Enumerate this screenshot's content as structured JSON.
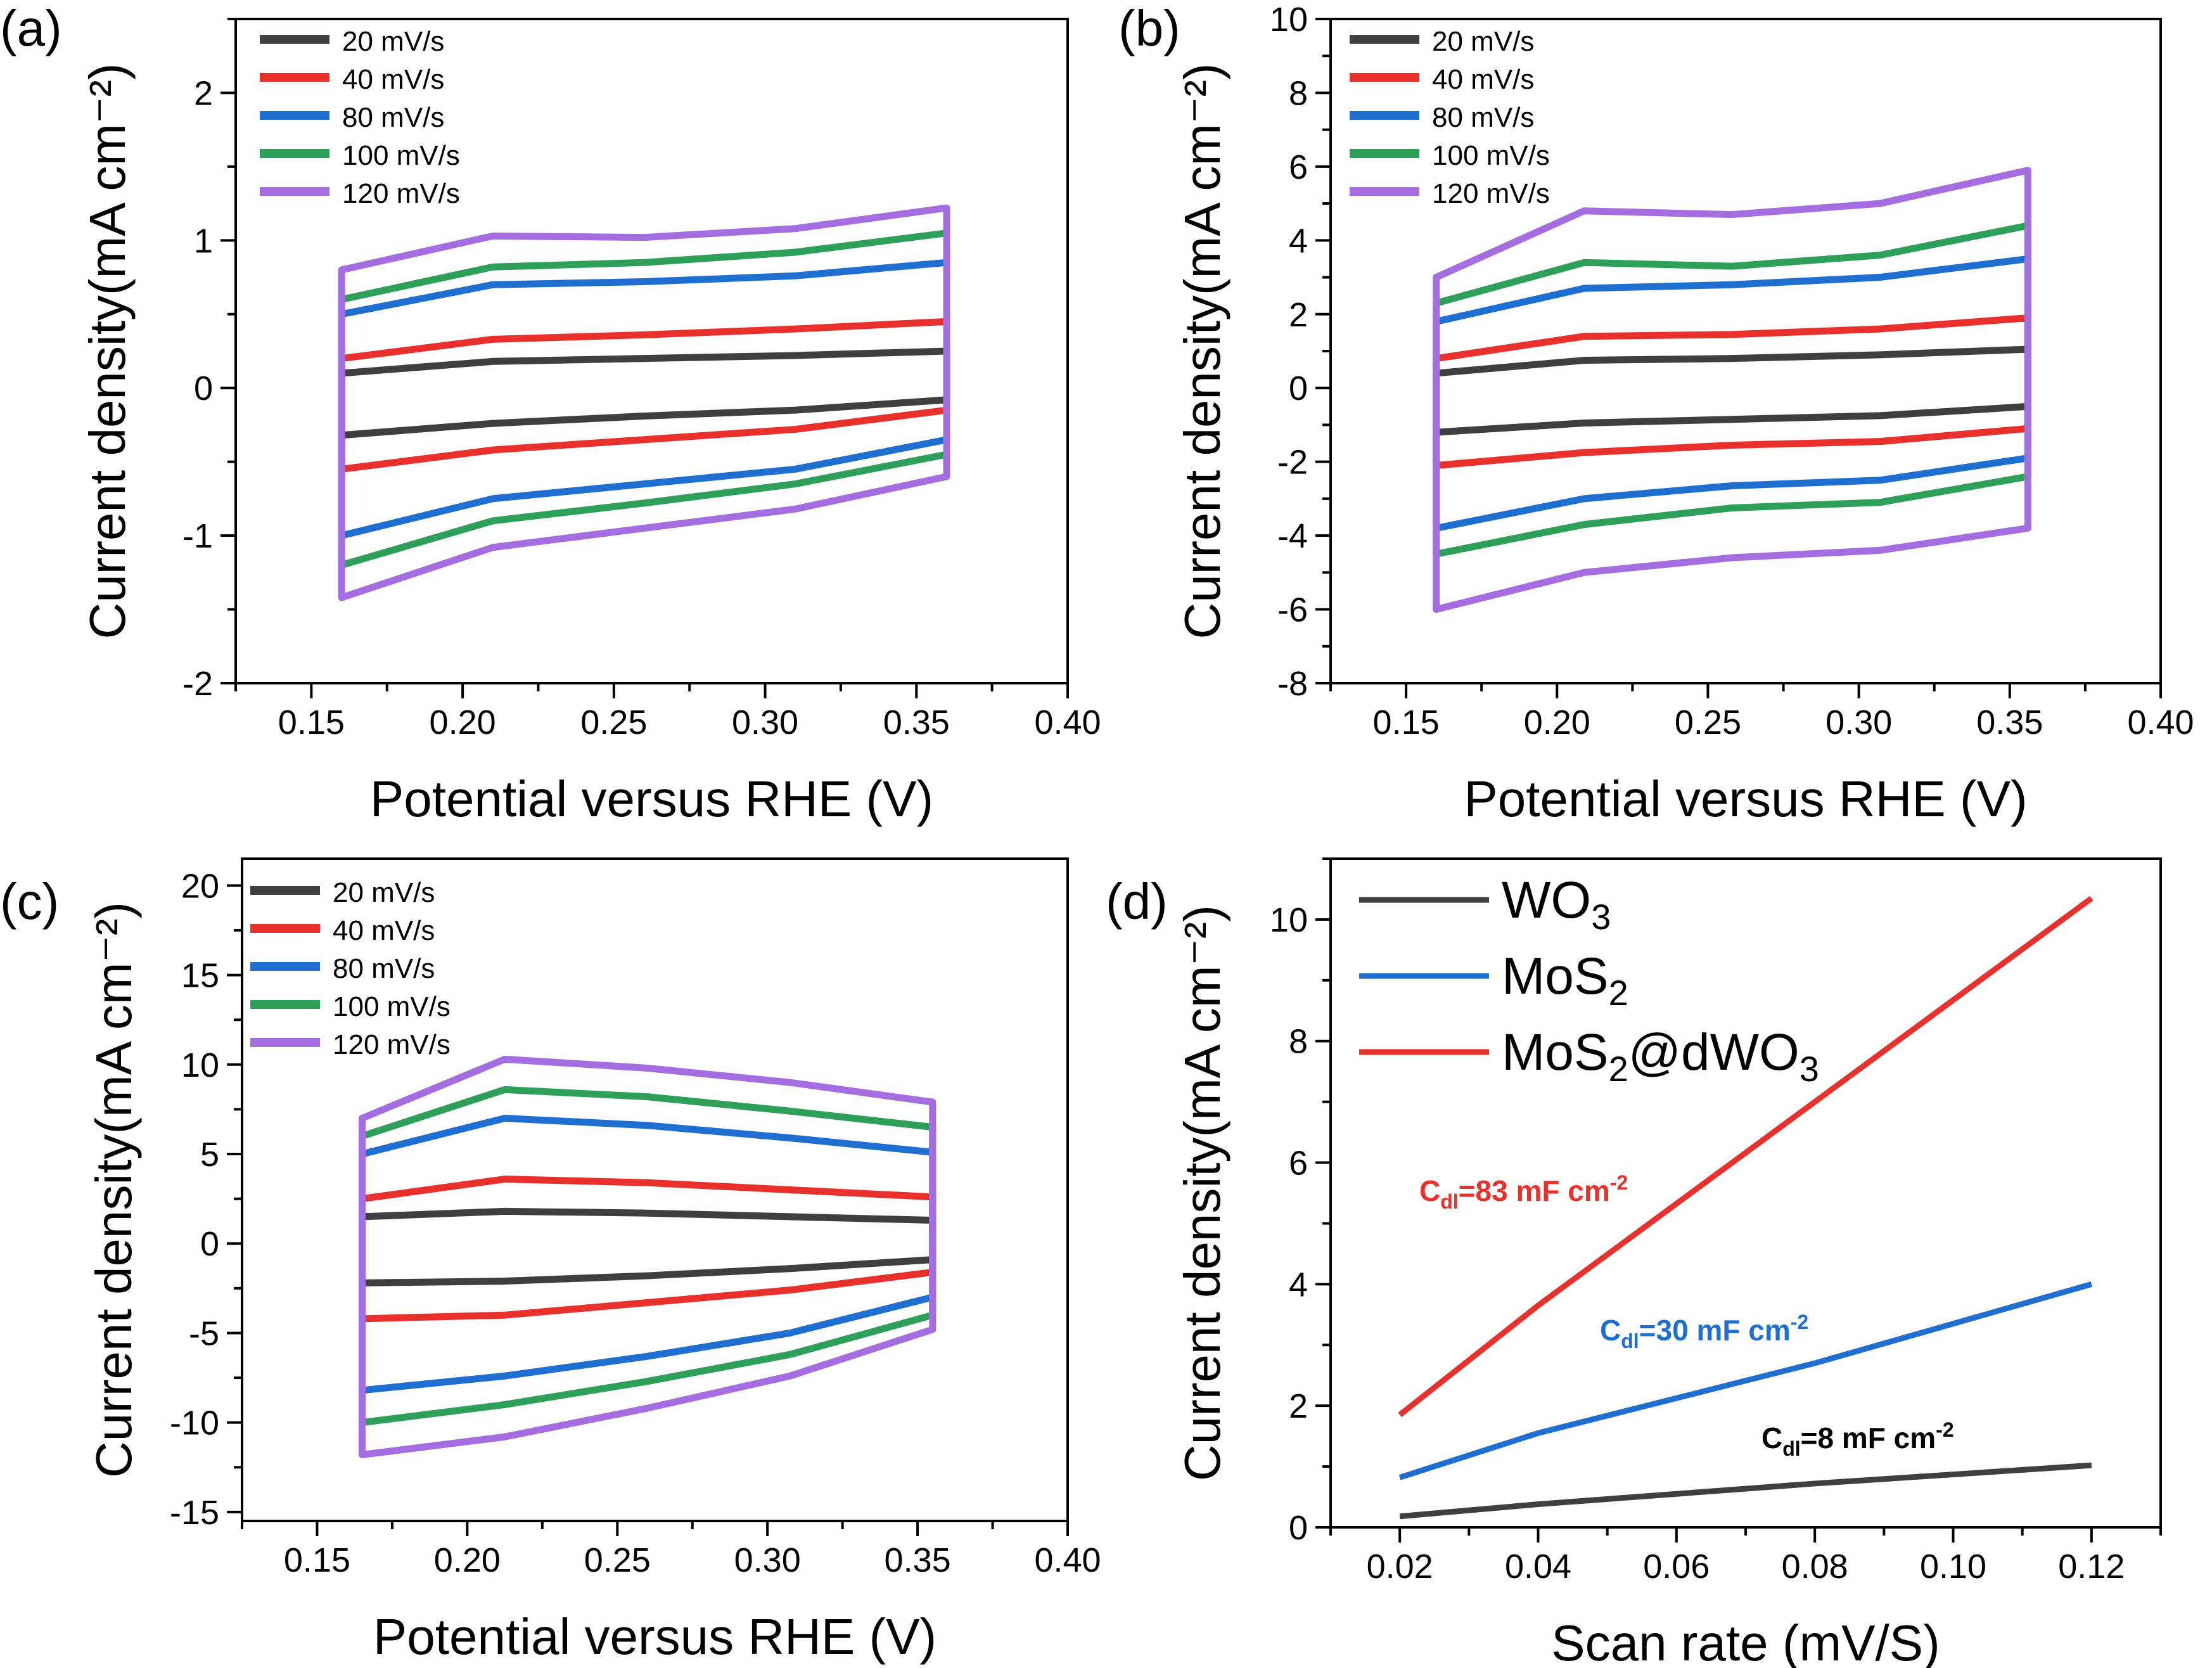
{
  "chart_data": [
    {
      "panel_label": "(a)",
      "type": "line",
      "xlabel": "Potential versus RHE (V)",
      "ylabel": "Current density(mA cm⁻²)",
      "xlim": [
        0.125,
        0.4
      ],
      "ylim": [
        -2.0,
        2.5
      ],
      "xticks": [
        "0.15",
        "0.20",
        "0.25",
        "0.30",
        "0.35",
        "0.40"
      ],
      "yticks": [
        "-2",
        "-1",
        "0",
        "1",
        "2"
      ],
      "xtick_values": [
        0.15,
        0.2,
        0.25,
        0.3,
        0.35,
        0.4
      ],
      "ytick_values": [
        -2,
        -1,
        0,
        1,
        2
      ],
      "x_range": [
        0.16,
        0.36
      ],
      "series": [
        {
          "name": "20 mV/s",
          "color": "#3f3f3f",
          "upper": [
            0.1,
            0.18,
            0.2,
            0.22,
            0.25
          ],
          "lower": [
            -0.32,
            -0.24,
            -0.19,
            -0.15,
            -0.08
          ]
        },
        {
          "name": "40 mV/s",
          "color": "#e8312d",
          "upper": [
            0.2,
            0.33,
            0.36,
            0.4,
            0.45
          ],
          "lower": [
            -0.55,
            -0.42,
            -0.35,
            -0.28,
            -0.15
          ]
        },
        {
          "name": "80 mV/s",
          "color": "#1f6fd1",
          "upper": [
            0.5,
            0.7,
            0.72,
            0.76,
            0.85
          ],
          "lower": [
            -1.0,
            -0.75,
            -0.65,
            -0.55,
            -0.35
          ]
        },
        {
          "name": "100 mV/s",
          "color": "#2ea05a",
          "upper": [
            0.6,
            0.82,
            0.85,
            0.92,
            1.05
          ],
          "lower": [
            -1.2,
            -0.9,
            -0.78,
            -0.65,
            -0.45
          ]
        },
        {
          "name": "120 mV/s",
          "color": "#a56ee0",
          "upper": [
            0.8,
            1.03,
            1.02,
            1.08,
            1.22
          ],
          "lower": [
            -1.42,
            -1.08,
            -0.95,
            -0.82,
            -0.6
          ]
        }
      ]
    },
    {
      "panel_label": "(b)",
      "type": "line",
      "xlabel": "Potential versus RHE (V)",
      "ylabel": "Current density(mA cm⁻²)",
      "xlim": [
        0.125,
        0.4
      ],
      "ylim": [
        -8,
        10
      ],
      "xticks": [
        "0.15",
        "0.20",
        "0.25",
        "0.30",
        "0.35",
        "0.40"
      ],
      "yticks": [
        "-8",
        "-6",
        "-4",
        "-2",
        "0",
        "2",
        "4",
        "6",
        "8",
        "10"
      ],
      "xtick_values": [
        0.15,
        0.2,
        0.25,
        0.3,
        0.35,
        0.4
      ],
      "ytick_values": [
        -8,
        -6,
        -4,
        -2,
        0,
        2,
        4,
        6,
        8,
        10
      ],
      "x_range": [
        0.16,
        0.356
      ],
      "series": [
        {
          "name": "20 mV/s",
          "color": "#3f3f3f",
          "upper": [
            0.4,
            0.75,
            0.8,
            0.9,
            1.05
          ],
          "lower": [
            -1.2,
            -0.95,
            -0.85,
            -0.75,
            -0.5
          ]
        },
        {
          "name": "40 mV/s",
          "color": "#e8312d",
          "upper": [
            0.8,
            1.4,
            1.45,
            1.6,
            1.9
          ],
          "lower": [
            -2.1,
            -1.75,
            -1.55,
            -1.45,
            -1.1
          ]
        },
        {
          "name": "80 mV/s",
          "color": "#1f6fd1",
          "upper": [
            1.8,
            2.7,
            2.8,
            3.0,
            3.5
          ],
          "lower": [
            -3.8,
            -3.0,
            -2.65,
            -2.5,
            -1.9
          ]
        },
        {
          "name": "100 mV/s",
          "color": "#2ea05a",
          "upper": [
            2.3,
            3.4,
            3.3,
            3.6,
            4.4
          ],
          "lower": [
            -4.5,
            -3.7,
            -3.25,
            -3.1,
            -2.4
          ]
        },
        {
          "name": "120 mV/s",
          "color": "#a56ee0",
          "upper": [
            3.0,
            4.8,
            4.7,
            5.0,
            5.9
          ],
          "lower": [
            -6.0,
            -5.0,
            -4.6,
            -4.4,
            -3.8
          ]
        }
      ]
    },
    {
      "panel_label": "(c)",
      "type": "line",
      "xlabel": "Potential versus RHE (V)",
      "ylabel": "Current density(mA cm⁻²)",
      "xlim": [
        0.125,
        0.4
      ],
      "ylim": [
        -15.5,
        21.5
      ],
      "xticks": [
        "0.15",
        "0.20",
        "0.25",
        "0.30",
        "0.35",
        "0.40"
      ],
      "yticks": [
        "-15",
        "-10",
        "-5",
        "0",
        "5",
        "10",
        "15",
        "20"
      ],
      "xtick_values": [
        0.15,
        0.2,
        0.25,
        0.3,
        0.35,
        0.4
      ],
      "ytick_values": [
        -15,
        -10,
        -5,
        0,
        5,
        10,
        15,
        20
      ],
      "x_range": [
        0.165,
        0.355
      ],
      "series": [
        {
          "name": "20 mV/s",
          "color": "#3f3f3f",
          "upper": [
            1.5,
            1.8,
            1.7,
            1.5,
            1.3
          ],
          "lower": [
            -2.2,
            -2.1,
            -1.8,
            -1.4,
            -0.9
          ]
        },
        {
          "name": "40 mV/s",
          "color": "#e8312d",
          "upper": [
            2.5,
            3.6,
            3.4,
            3.0,
            2.6
          ],
          "lower": [
            -4.2,
            -4.0,
            -3.3,
            -2.6,
            -1.6
          ]
        },
        {
          "name": "80 mV/s",
          "color": "#1f6fd1",
          "upper": [
            5.0,
            7.0,
            6.6,
            5.9,
            5.1
          ],
          "lower": [
            -8.2,
            -7.4,
            -6.3,
            -5.0,
            -3.0
          ]
        },
        {
          "name": "100 mV/s",
          "color": "#2ea05a",
          "upper": [
            6.0,
            8.6,
            8.2,
            7.4,
            6.5
          ],
          "lower": [
            -10.0,
            -9.0,
            -7.7,
            -6.2,
            -4.0
          ]
        },
        {
          "name": "120 mV/s",
          "color": "#a56ee0",
          "upper": [
            7.0,
            10.3,
            9.8,
            9.0,
            7.9
          ],
          "lower": [
            -11.8,
            -10.8,
            -9.2,
            -7.4,
            -4.8
          ]
        }
      ]
    },
    {
      "panel_label": "(d)",
      "type": "line",
      "xlabel": "Scan rate (mV/S)",
      "ylabel": "Current density(mA cm⁻²)",
      "xlim": [
        0.01,
        0.13
      ],
      "ylim": [
        0,
        11
      ],
      "xticks": [
        "0.02",
        "0.04",
        "0.06",
        "0.08",
        "0.10",
        "0.12"
      ],
      "yticks": [
        "0",
        "2",
        "4",
        "6",
        "8",
        "10"
      ],
      "xtick_values": [
        0.02,
        0.04,
        0.06,
        0.08,
        0.1,
        0.12
      ],
      "ytick_values": [
        0,
        2,
        4,
        6,
        8,
        10
      ],
      "x": [
        0.02,
        0.04,
        0.08,
        0.12
      ],
      "series": [
        {
          "name": "WO",
          "sub": "3",
          "suffix": "",
          "color": "#3f3f3f",
          "values": [
            0.18,
            0.38,
            0.72,
            1.02
          ]
        },
        {
          "name": "MoS",
          "sub": "2",
          "suffix": "",
          "color": "#1f6fd1",
          "values": [
            0.82,
            1.55,
            2.7,
            4.0
          ]
        },
        {
          "name": "MoS",
          "sub": "2",
          "suffix": "@dWO",
          "sub2": "3",
          "color": "#e8312d",
          "values": [
            1.85,
            3.65,
            7.0,
            10.35
          ]
        }
      ],
      "annotations": [
        {
          "id": "cdl-red",
          "main": "C",
          "sub": "dl",
          "rest": "=83 mF cm",
          "sup": "-2",
          "color": "#e8312d"
        },
        {
          "id": "cdl-blue",
          "main": "C",
          "sub": "dl",
          "rest": "=30 mF cm",
          "sup": "-2",
          "color": "#1f6fd1"
        },
        {
          "id": "cdl-black",
          "main": "C",
          "sub": "dl",
          "rest": "=8 mF cm",
          "sup": "-2",
          "color": "#000000"
        }
      ]
    }
  ]
}
